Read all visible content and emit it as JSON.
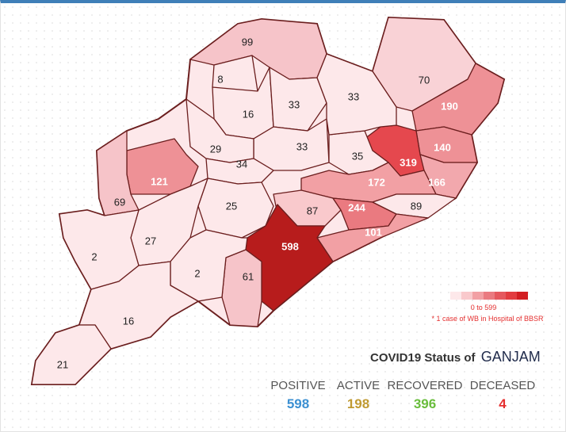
{
  "title": {
    "prefix": "COVID19 Status of",
    "district": "GANJAM"
  },
  "stats": [
    {
      "label": "POSITIVE",
      "value": "598",
      "color": "#3c90d2"
    },
    {
      "label": "ACTIVE",
      "value": "198",
      "color": "#c09a32"
    },
    {
      "label": "RECOVERED",
      "value": "396",
      "color": "#69bd3c"
    },
    {
      "label": "DECEASED",
      "value": "4",
      "color": "#e53030"
    }
  ],
  "legend": {
    "range": "0 to 599",
    "note": "* 1 case of WB in Hospital of BBSR",
    "colors": [
      "#fde8ea",
      "#f9c9cc",
      "#f2a0a4",
      "#ea7a80",
      "#e5585e",
      "#e23c40",
      "#d21e22"
    ]
  },
  "district_values": [
    99,
    8,
    16,
    33,
    33,
    70,
    190,
    140,
    319,
    166,
    35,
    33,
    29,
    34,
    121,
    69,
    25,
    172,
    87,
    244,
    89,
    101,
    598,
    61,
    27,
    2,
    2,
    16,
    21
  ]
}
